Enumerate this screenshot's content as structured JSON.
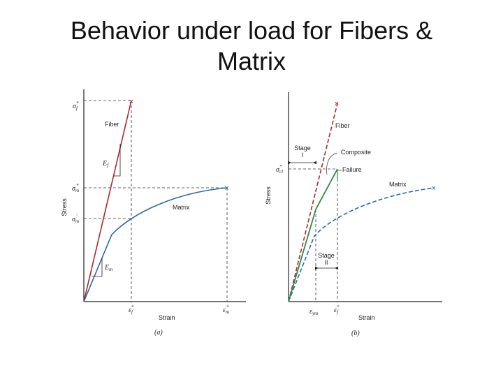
{
  "title_line1": "Behavior under load for Fibers &",
  "title_line2": "Matrix",
  "panel_a": {
    "caption": "(a)",
    "y_axis_label": "Stress",
    "x_axis_label": "Strain",
    "fiber_label": "Fiber",
    "matrix_label": "Matrix",
    "modulus_fiber": {
      "base": "E",
      "sub": "f"
    },
    "modulus_matrix": {
      "base": "E",
      "sub": "m"
    },
    "sigma_f_star": {
      "base": "σ",
      "sub": "f",
      "sup": "*"
    },
    "sigma_m_star": {
      "base": "σ",
      "sub": "m",
      "sup": "*"
    },
    "sigma_m_prime": {
      "base": "σ",
      "sub": "m",
      "sup": "′"
    },
    "eps_f_star": {
      "base": "ε",
      "sub": "f",
      "sup": "*"
    },
    "eps_m_star": {
      "base": "ε",
      "sub": "m",
      "sup": "*"
    }
  },
  "panel_b": {
    "caption": "(b)",
    "y_axis_label": "Stress",
    "x_axis_label": "Strain",
    "fiber_label": "Fiber",
    "matrix_label": "Matrix",
    "composite_label": "Composite",
    "failure_label": "Failure",
    "stage1_line1": "Stage",
    "stage1_line2": "I",
    "stage2_line1": "Stage",
    "stage2_line2": "II",
    "sigma_cl_star": {
      "base": "σ",
      "sub": "cl",
      "sup": "*"
    },
    "eps_ym": {
      "base": "ε",
      "sub": "ym"
    },
    "eps_f_star": {
      "base": "ε",
      "sub": "f",
      "sup": "*"
    }
  },
  "colors": {
    "fiber": "#b0282c",
    "matrix": "#2b6aa8",
    "composite": "#2e8a4a",
    "axis": "#222222",
    "guide": "#333333"
  }
}
